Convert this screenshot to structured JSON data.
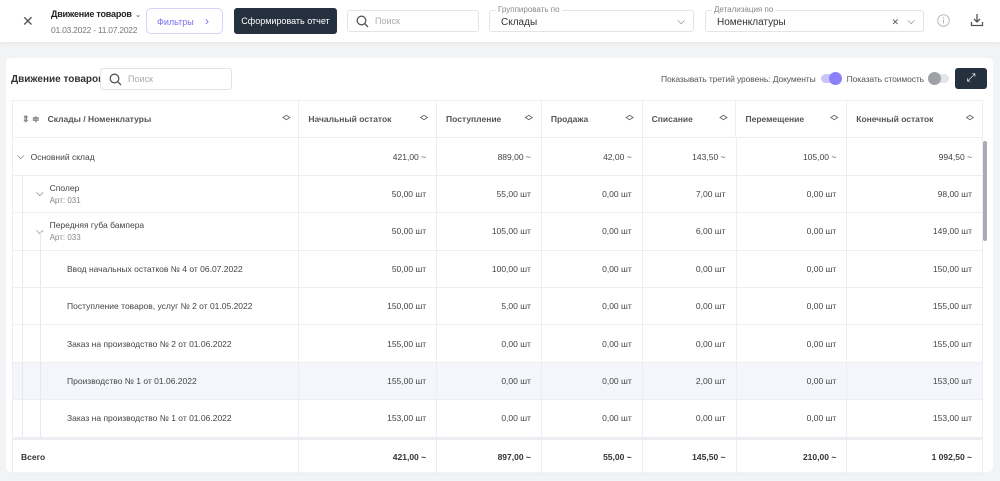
{
  "topbar": {
    "close": "✕",
    "report_title": "Движение товаров",
    "report_chevron": "⌄",
    "date_range": "01.03.2022 - 11.07.2022",
    "filters_label": "Фильтры",
    "generate_label": "Сформировать отчет",
    "search_placeholder": "Поиск",
    "group_by": {
      "label": "Группировать по",
      "value": "Склады"
    },
    "detail_by": {
      "label": "Детализация по",
      "value": "Номенклатуры"
    }
  },
  "card": {
    "title": "Движение товаров",
    "search_placeholder": "Поиск",
    "third_level_label": "Показывать третий уровень: Документы",
    "third_level_on": true,
    "show_cost_label": "Показать стоимость",
    "show_cost_on": false
  },
  "colors": {
    "accent": "#8b80f9",
    "dark": "#26313f"
  },
  "table": {
    "headers": [
      "Склады / Номенклатуры",
      "Начальный остаток",
      "Поступление",
      "Продажа",
      "Списание",
      "Перемещение",
      "Конечный остаток"
    ],
    "rows": [
      {
        "level": 0,
        "name": "Основний склад",
        "values": [
          "421,00 ~",
          "889,00 ~",
          "42,00 ~",
          "143,50 ~",
          "105,00 ~",
          "994,50 ~"
        ]
      },
      {
        "level": 1,
        "name": "Сполер",
        "sub": "Арт: 031",
        "values": [
          "50,00 шт",
          "55,00 шт",
          "0,00 шт",
          "7,00 шт",
          "0,00 шт",
          "98,00 шт"
        ]
      },
      {
        "level": 1,
        "name": "Передняя губа бампера",
        "sub": "Арт: 033",
        "values": [
          "50,00 шт",
          "105,00 шт",
          "0,00 шт",
          "6,00 шт",
          "0,00 шт",
          "149,00 шт"
        ]
      },
      {
        "level": 2,
        "name": "Ввод начальных остатков № 4 от 06.07.2022",
        "values": [
          "50,00 шт",
          "100,00 шт",
          "0,00 шт",
          "0,00 шт",
          "0,00 шт",
          "150,00 шт"
        ]
      },
      {
        "level": 2,
        "name": "Поступление товаров, услуг № 2 от 01.05.2022",
        "values": [
          "150,00 шт",
          "5,00 шт",
          "0,00 шт",
          "0,00 шт",
          "0,00 шт",
          "155,00 шт"
        ]
      },
      {
        "level": 2,
        "name": "Заказ на производство № 2 от 01.06.2022",
        "values": [
          "155,00 шт",
          "0,00 шт",
          "0,00 шт",
          "0,00 шт",
          "0,00 шт",
          "155,00 шт"
        ]
      },
      {
        "level": 2,
        "name": "Производство № 1 от 01.06.2022",
        "values": [
          "155,00 шт",
          "0,00 шт",
          "0,00 шт",
          "2,00 шт",
          "0,00 шт",
          "153,00 шт"
        ],
        "highlighted": true
      },
      {
        "level": 2,
        "name": "Заказ на производство № 1 от 01.06.2022",
        "values": [
          "153,00 шт",
          "0,00 шт",
          "0,00 шт",
          "0,00 шт",
          "0,00 шт",
          "153,00 шт"
        ]
      }
    ],
    "total": {
      "label": "Всего",
      "values": [
        "421,00 ~",
        "897,00 ~",
        "55,00 ~",
        "145,50 ~",
        "210,00 ~",
        "1 092,50 ~"
      ]
    }
  }
}
